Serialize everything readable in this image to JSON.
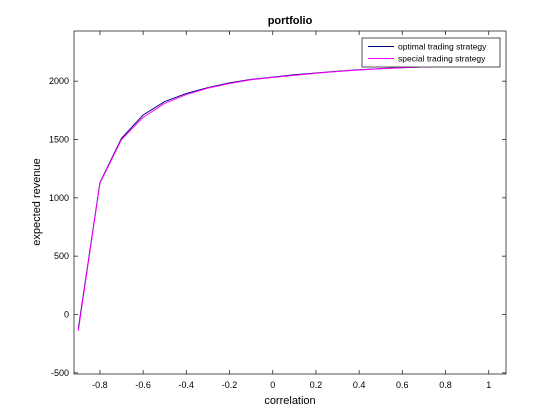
{
  "chart_data": {
    "type": "line",
    "title": "portfolio",
    "xlabel": "correlation",
    "ylabel": "expected revenue",
    "xlim": [
      -0.92,
      1.08
    ],
    "ylim": [
      -510,
      2430
    ],
    "xticks": [
      -0.8,
      -0.6,
      -0.4,
      -0.2,
      0,
      0.2,
      0.4,
      0.6,
      0.8,
      1
    ],
    "xtick_labels": [
      "-0.8",
      "-0.6",
      "-0.4",
      "-0.2",
      "0",
      "0.2",
      "0.4",
      "0.6",
      "0.8",
      "1"
    ],
    "yticks": [
      -500,
      0,
      500,
      1000,
      1500,
      2000
    ],
    "ytick_labels": [
      "-500",
      "0",
      "500",
      "1000",
      "1500",
      "2000"
    ],
    "grid": false,
    "legend_position": "top-right",
    "series": [
      {
        "name": "optimal trading strategy",
        "color": "#00007f",
        "x": [
          -0.9,
          -0.8,
          -0.7,
          -0.6,
          -0.5,
          -0.4,
          -0.3,
          -0.2,
          -0.1,
          0,
          0.1,
          0.2,
          0.3,
          0.4,
          0.5,
          0.6,
          0.7,
          0.8,
          0.9
        ],
        "y": [
          -120,
          1130,
          1510,
          1710,
          1825,
          1895,
          1945,
          1985,
          2015,
          2035,
          2055,
          2070,
          2085,
          2098,
          2108,
          2116,
          2123,
          2128,
          2133
        ]
      },
      {
        "name": "special trading strategy",
        "color": "#ff00ff",
        "x": [
          -0.9,
          -0.8,
          -0.7,
          -0.6,
          -0.5,
          -0.4,
          -0.3,
          -0.2,
          -0.1,
          0,
          0.1,
          0.2,
          0.3,
          0.4,
          0.5,
          0.6,
          0.7,
          0.8,
          0.9
        ],
        "y": [
          -140,
          1125,
          1500,
          1690,
          1810,
          1885,
          1940,
          1980,
          2012,
          2032,
          2050,
          2068,
          2083,
          2096,
          2106,
          2115,
          2122,
          2127,
          2132
        ]
      }
    ]
  }
}
